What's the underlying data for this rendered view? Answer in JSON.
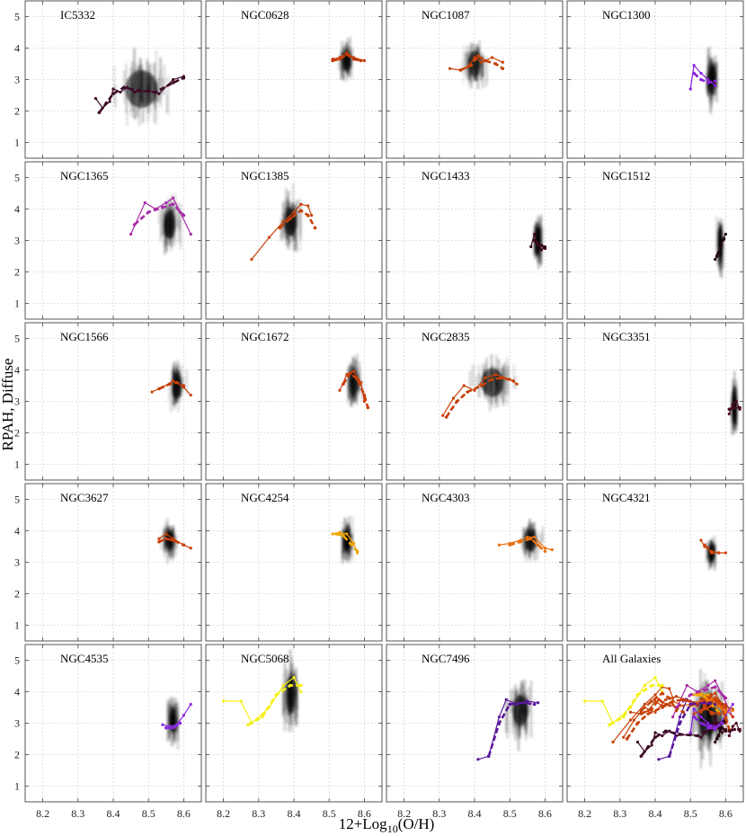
{
  "figure": {
    "xlabel": "12+Log10(O/H)",
    "xlabel_parts": {
      "base": "12+Log",
      "sub": "10",
      "rest": "(O/H)"
    },
    "ylabel": "RPAH, Diffuse"
  },
  "chart_data": {
    "type": "line",
    "layout": "small-multiples",
    "xlim": [
      8.15,
      8.65
    ],
    "ylim": [
      0.5,
      5.5
    ],
    "xticks": [
      8.2,
      8.3,
      8.4,
      8.5,
      8.6
    ],
    "yticks": [
      1,
      2,
      3,
      4,
      5
    ],
    "grid": true,
    "background": "2D density of pixels (grey)",
    "panels": [
      {
        "name": "IC5332",
        "color": "#3d0a26",
        "density": {
          "xc": 8.48,
          "xw": 0.13,
          "yc": 2.7,
          "yw": 1.7
        },
        "solid": [
          [
            8.35,
            2.4
          ],
          [
            8.37,
            2.1
          ],
          [
            8.39,
            2.3
          ],
          [
            8.4,
            2.7
          ],
          [
            8.42,
            2.6
          ],
          [
            8.44,
            2.75
          ],
          [
            8.46,
            2.6
          ],
          [
            8.5,
            2.65
          ],
          [
            8.53,
            2.55
          ],
          [
            8.57,
            3.0
          ],
          [
            8.6,
            3.1
          ]
        ],
        "dashed": [
          [
            8.36,
            1.95
          ],
          [
            8.38,
            2.25
          ],
          [
            8.4,
            2.55
          ],
          [
            8.43,
            2.75
          ],
          [
            8.47,
            2.65
          ],
          [
            8.52,
            2.6
          ],
          [
            8.57,
            2.9
          ],
          [
            8.6,
            3.05
          ]
        ]
      },
      {
        "name": "NGC0628",
        "color": "#c13a08",
        "density": {
          "xc": 8.55,
          "xw": 0.035,
          "yc": 3.6,
          "yw": 0.9
        },
        "solid": [
          [
            8.51,
            3.65
          ],
          [
            8.53,
            3.7
          ],
          [
            8.55,
            3.85
          ],
          [
            8.57,
            3.7
          ],
          [
            8.6,
            3.6
          ]
        ],
        "dashed": [
          [
            8.51,
            3.6
          ],
          [
            8.53,
            3.65
          ],
          [
            8.55,
            3.8
          ],
          [
            8.57,
            3.65
          ],
          [
            8.59,
            3.6
          ]
        ]
      },
      {
        "name": "NGC1087",
        "color": "#c64209",
        "density": {
          "xc": 8.4,
          "xw": 0.05,
          "yc": 3.5,
          "yw": 1.2
        },
        "solid": [
          [
            8.33,
            3.35
          ],
          [
            8.36,
            3.3
          ],
          [
            8.38,
            3.4
          ],
          [
            8.4,
            3.7
          ],
          [
            8.42,
            3.55
          ],
          [
            8.45,
            3.7
          ],
          [
            8.48,
            3.55
          ]
        ],
        "dashed": [
          [
            8.36,
            3.3
          ],
          [
            8.39,
            3.45
          ],
          [
            8.41,
            3.75
          ],
          [
            8.43,
            3.6
          ],
          [
            8.46,
            3.5
          ],
          [
            8.48,
            3.35
          ]
        ]
      },
      {
        "name": "NGC1300",
        "color": "#8a1fe0",
        "density": {
          "xc": 8.56,
          "xw": 0.03,
          "yc": 3.0,
          "yw": 1.3
        },
        "solid": [
          [
            8.5,
            2.7
          ],
          [
            8.51,
            3.45
          ],
          [
            8.53,
            3.2
          ],
          [
            8.55,
            3.0
          ],
          [
            8.57,
            2.8
          ]
        ],
        "dashed": [
          [
            8.51,
            3.2
          ],
          [
            8.53,
            3.0
          ],
          [
            8.55,
            2.9
          ],
          [
            8.57,
            2.95
          ]
        ]
      },
      {
        "name": "NGC1365",
        "color": "#a82aa8",
        "density": {
          "xc": 8.56,
          "xw": 0.05,
          "yc": 3.5,
          "yw": 1.3
        },
        "solid": [
          [
            8.45,
            3.2
          ],
          [
            8.49,
            4.2
          ],
          [
            8.52,
            4.0
          ],
          [
            8.55,
            4.2
          ],
          [
            8.57,
            4.35
          ],
          [
            8.59,
            3.9
          ],
          [
            8.62,
            3.2
          ]
        ],
        "dashed": [
          [
            8.46,
            3.5
          ],
          [
            8.5,
            3.9
          ],
          [
            8.54,
            4.05
          ],
          [
            8.57,
            4.15
          ],
          [
            8.6,
            3.8
          ]
        ]
      },
      {
        "name": "NGC1385",
        "color": "#c6430a",
        "density": {
          "xc": 8.39,
          "xw": 0.05,
          "yc": 3.6,
          "yw": 1.3
        },
        "solid": [
          [
            8.28,
            2.4
          ],
          [
            8.33,
            3.1
          ],
          [
            8.37,
            3.6
          ],
          [
            8.4,
            3.9
          ],
          [
            8.42,
            4.15
          ],
          [
            8.44,
            4.1
          ],
          [
            8.45,
            3.8
          ]
        ],
        "dashed": [
          [
            8.36,
            3.4
          ],
          [
            8.39,
            3.7
          ],
          [
            8.42,
            3.95
          ],
          [
            8.44,
            3.8
          ],
          [
            8.46,
            3.4
          ]
        ]
      },
      {
        "name": "NGC1433",
        "color": "#3a0818",
        "density": {
          "xc": 8.58,
          "xw": 0.02,
          "yc": 3.0,
          "yw": 1.3
        },
        "solid": [
          [
            8.56,
            2.8
          ],
          [
            8.57,
            3.2
          ],
          [
            8.58,
            2.9
          ],
          [
            8.59,
            2.7
          ],
          [
            8.6,
            2.8
          ]
        ],
        "dashed": [
          [
            8.57,
            3.0
          ],
          [
            8.58,
            2.85
          ],
          [
            8.59,
            2.85
          ],
          [
            8.6,
            2.75
          ]
        ]
      },
      {
        "name": "NGC1512",
        "color": "#200512",
        "density": {
          "xc": 8.585,
          "xw": 0.015,
          "yc": 2.9,
          "yw": 1.3
        },
        "solid": [
          [
            8.57,
            2.4
          ],
          [
            8.58,
            2.6
          ],
          [
            8.59,
            3.0
          ],
          [
            8.6,
            3.2
          ]
        ],
        "dashed": [
          [
            8.575,
            2.5
          ],
          [
            8.585,
            2.8
          ],
          [
            8.595,
            3.05
          ]
        ]
      },
      {
        "name": "NGC1566",
        "color": "#c93f0a",
        "density": {
          "xc": 8.58,
          "xw": 0.035,
          "yc": 3.5,
          "yw": 1.2
        },
        "solid": [
          [
            8.51,
            3.3
          ],
          [
            8.54,
            3.45
          ],
          [
            8.57,
            3.65
          ],
          [
            8.6,
            3.45
          ],
          [
            8.62,
            3.2
          ]
        ],
        "dashed": [
          [
            8.53,
            3.4
          ],
          [
            8.56,
            3.55
          ],
          [
            8.58,
            3.6
          ],
          [
            8.6,
            3.5
          ]
        ]
      },
      {
        "name": "NGC1672",
        "color": "#c9400a",
        "density": {
          "xc": 8.57,
          "xw": 0.03,
          "yc": 3.6,
          "yw": 1.2
        },
        "solid": [
          [
            8.53,
            3.35
          ],
          [
            8.55,
            3.85
          ],
          [
            8.57,
            3.95
          ],
          [
            8.59,
            3.6
          ],
          [
            8.6,
            3.0
          ]
        ],
        "dashed": [
          [
            8.54,
            3.55
          ],
          [
            8.56,
            3.9
          ],
          [
            8.58,
            3.7
          ],
          [
            8.6,
            3.2
          ],
          [
            8.61,
            2.8
          ]
        ]
      },
      {
        "name": "NGC2835",
        "color": "#c8400a",
        "density": {
          "xc": 8.45,
          "xw": 0.09,
          "yc": 3.6,
          "yw": 1.3
        },
        "solid": [
          [
            8.31,
            2.55
          ],
          [
            8.34,
            3.1
          ],
          [
            8.37,
            3.5
          ],
          [
            8.4,
            3.35
          ],
          [
            8.43,
            3.75
          ],
          [
            8.46,
            3.85
          ],
          [
            8.5,
            3.7
          ],
          [
            8.52,
            3.55
          ]
        ],
        "dashed": [
          [
            8.32,
            2.5
          ],
          [
            8.35,
            3.0
          ],
          [
            8.38,
            3.3
          ],
          [
            8.42,
            3.5
          ],
          [
            8.45,
            3.7
          ],
          [
            8.48,
            3.75
          ],
          [
            8.51,
            3.65
          ]
        ]
      },
      {
        "name": "NGC3351",
        "color": "#4a0a22",
        "density": {
          "xc": 8.625,
          "xw": 0.015,
          "yc": 2.8,
          "yw": 1.3
        },
        "solid": [
          [
            8.61,
            2.6
          ],
          [
            8.62,
            2.9
          ],
          [
            8.63,
            3.0
          ],
          [
            8.64,
            2.75
          ]
        ],
        "dashed": [
          [
            8.61,
            2.75
          ],
          [
            8.625,
            2.8
          ],
          [
            8.64,
            2.8
          ]
        ]
      },
      {
        "name": "NGC3627",
        "color": "#c8400a",
        "density": {
          "xc": 8.56,
          "xw": 0.035,
          "yc": 3.7,
          "yw": 0.9
        },
        "solid": [
          [
            8.53,
            3.75
          ],
          [
            8.55,
            3.9
          ],
          [
            8.57,
            3.75
          ],
          [
            8.6,
            3.55
          ],
          [
            8.62,
            3.45
          ]
        ],
        "dashed": [
          [
            8.53,
            3.65
          ],
          [
            8.55,
            3.75
          ],
          [
            8.57,
            3.7
          ],
          [
            8.6,
            3.55
          ]
        ]
      },
      {
        "name": "NGC4254",
        "color": "#f0a400",
        "density": {
          "xc": 8.55,
          "xw": 0.03,
          "yc": 3.7,
          "yw": 1.0
        },
        "solid": [
          [
            8.51,
            3.9
          ],
          [
            8.53,
            3.95
          ],
          [
            8.55,
            3.9
          ],
          [
            8.57,
            3.6
          ],
          [
            8.58,
            3.3
          ]
        ],
        "dashed": [
          [
            8.52,
            3.9
          ],
          [
            8.54,
            3.85
          ],
          [
            8.56,
            3.6
          ],
          [
            8.58,
            3.35
          ]
        ]
      },
      {
        "name": "NGC4303",
        "color": "#e87010",
        "density": {
          "xc": 8.56,
          "xw": 0.05,
          "yc": 3.7,
          "yw": 1.0
        },
        "solid": [
          [
            8.47,
            3.55
          ],
          [
            8.5,
            3.6
          ],
          [
            8.53,
            3.7
          ],
          [
            8.55,
            3.8
          ],
          [
            8.57,
            3.8
          ],
          [
            8.6,
            3.45
          ],
          [
            8.62,
            3.4
          ]
        ],
        "dashed": [
          [
            8.5,
            3.55
          ],
          [
            8.53,
            3.65
          ],
          [
            8.56,
            3.75
          ],
          [
            8.58,
            3.55
          ],
          [
            8.6,
            3.35
          ]
        ]
      },
      {
        "name": "NGC4321",
        "color": "#d0440b",
        "density": {
          "xc": 8.56,
          "xw": 0.025,
          "yc": 3.3,
          "yw": 0.8
        },
        "solid": [
          [
            8.53,
            3.7
          ],
          [
            8.54,
            3.5
          ],
          [
            8.56,
            3.35
          ],
          [
            8.58,
            3.3
          ],
          [
            8.6,
            3.3
          ]
        ],
        "dashed": [
          [
            8.54,
            3.55
          ],
          [
            8.56,
            3.3
          ],
          [
            8.58,
            3.3
          ]
        ]
      },
      {
        "name": "NGC4535",
        "color": "#8a2be2",
        "density": {
          "xc": 8.57,
          "xw": 0.025,
          "yc": 3.1,
          "yw": 1.2
        },
        "solid": [
          [
            8.54,
            2.95
          ],
          [
            8.56,
            2.9
          ],
          [
            8.58,
            2.95
          ],
          [
            8.6,
            3.25
          ],
          [
            8.62,
            3.6
          ]
        ],
        "dashed": [
          [
            8.55,
            2.85
          ],
          [
            8.57,
            2.85
          ],
          [
            8.59,
            3.0
          ]
        ]
      },
      {
        "name": "NGC5068",
        "color": "#f5f015",
        "density": {
          "xc": 8.39,
          "xw": 0.035,
          "yc": 3.9,
          "yw": 1.7
        },
        "solid": [
          [
            8.2,
            3.7
          ],
          [
            8.25,
            3.7
          ],
          [
            8.28,
            3.0
          ],
          [
            8.33,
            3.5
          ],
          [
            8.37,
            4.2
          ],
          [
            8.4,
            4.45
          ],
          [
            8.42,
            4.0
          ]
        ],
        "dashed": [
          [
            8.27,
            2.95
          ],
          [
            8.31,
            3.2
          ],
          [
            8.35,
            3.9
          ],
          [
            8.39,
            4.2
          ],
          [
            8.42,
            4.2
          ]
        ]
      },
      {
        "name": "NGC7496",
        "color": "#5a189a",
        "density": {
          "xc": 8.53,
          "xw": 0.06,
          "yc": 3.4,
          "yw": 1.4
        },
        "solid": [
          [
            8.41,
            1.85
          ],
          [
            8.44,
            1.95
          ],
          [
            8.47,
            3.2
          ],
          [
            8.49,
            3.75
          ],
          [
            8.52,
            3.6
          ],
          [
            8.55,
            3.7
          ],
          [
            8.58,
            3.65
          ]
        ],
        "dashed": [
          [
            8.44,
            1.95
          ],
          [
            8.47,
            3.0
          ],
          [
            8.5,
            3.6
          ],
          [
            8.54,
            3.65
          ],
          [
            8.57,
            3.6
          ]
        ]
      },
      {
        "name": "All Galaxies",
        "color": "",
        "combined": true,
        "density": {
          "xc": 8.55,
          "xw": 0.08,
          "yc": 3.2,
          "yw": 1.7
        }
      }
    ]
  }
}
